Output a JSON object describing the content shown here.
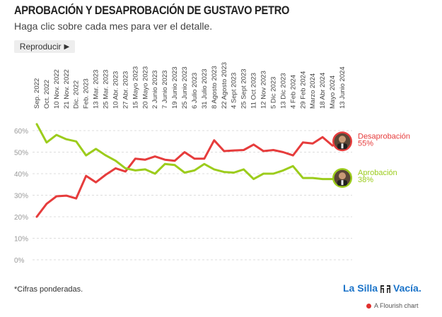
{
  "header": {
    "title": "APROBACIÓN Y DESAPROBACIÓN DE GUSTAVO PETRO",
    "subtitle": "Haga clic sobre cada mes para ver el detalle.",
    "play_label": "Reproducir",
    "play_icon": "play-icon"
  },
  "footer": {
    "note": "*Cifras ponderadas.",
    "brand_left": "La Silla",
    "brand_right": "Vacía.",
    "credit": "A Flourish chart"
  },
  "colors": {
    "disapproval": "#e63c3c",
    "approval": "#9ccc1c",
    "grid": "#dddddd",
    "axis_text": "#999999",
    "brand": "#1a73c9"
  },
  "chart_data": {
    "type": "line",
    "title": "APROBACIÓN Y DESAPROBACIÓN DE GUSTAVO PETRO",
    "ylim": [
      0,
      60
    ],
    "yticks": [
      "0%",
      "10%",
      "20%",
      "30%",
      "40%",
      "50%",
      "60%"
    ],
    "ytick_values": [
      0,
      10,
      20,
      30,
      40,
      50,
      60
    ],
    "x_labels": [
      "Sep. 2022",
      "Oct. 2022",
      "10 Nov. 2022",
      "21 Nov. 2022",
      "Dic. 2022",
      "Feb. 2023",
      "13 Mar. 2023",
      "25 Mar. 2023",
      "10 Abr. 2023",
      "27 Abr. 2023",
      "15 Mayo 2023",
      "20 Mayo 2023",
      "2 Junio 2023",
      "7 Junio 2023",
      "19 Junio 2023",
      "25 Junio 2023",
      "6 Julio 2023",
      "31 Julio 2023",
      "8 Agosto 2023",
      "22 Agosto 2023",
      "4 Sept 2023",
      "25 Sept 2023",
      "11 Oct 2023",
      "12 Nov 2023",
      "5 Dic 2023",
      "13 Dic 2023",
      "4 Feb 2024",
      "29 Feb 2024",
      "Marzo 2024",
      "18 Abr 2024",
      "Mayo 2024",
      "13 Junio 2024"
    ],
    "grid": true,
    "series": [
      {
        "name": "Desaprobación",
        "end_label": "55%",
        "color": "#e63c3c",
        "values": [
          20,
          26,
          29.5,
          29.8,
          28.5,
          39,
          36,
          39.5,
          42.5,
          41,
          47,
          46.5,
          48,
          46.5,
          46,
          50,
          47,
          47,
          55.5,
          50.5,
          50.8,
          51,
          53.5,
          50.5,
          51,
          50,
          48.5,
          54.5,
          54,
          57,
          53,
          55
        ]
      },
      {
        "name": "Aprobación",
        "end_label": "38%",
        "color": "#9ccc1c",
        "values": [
          63,
          54.5,
          58,
          56,
          55,
          48.5,
          51.5,
          48.5,
          46,
          42.5,
          41.5,
          42,
          40,
          44.5,
          44,
          40.5,
          41.5,
          44.5,
          42,
          40.8,
          40.5,
          42,
          37.5,
          40,
          40,
          41.5,
          43.5,
          38,
          38,
          37.5,
          37.5,
          38
        ]
      }
    ]
  }
}
